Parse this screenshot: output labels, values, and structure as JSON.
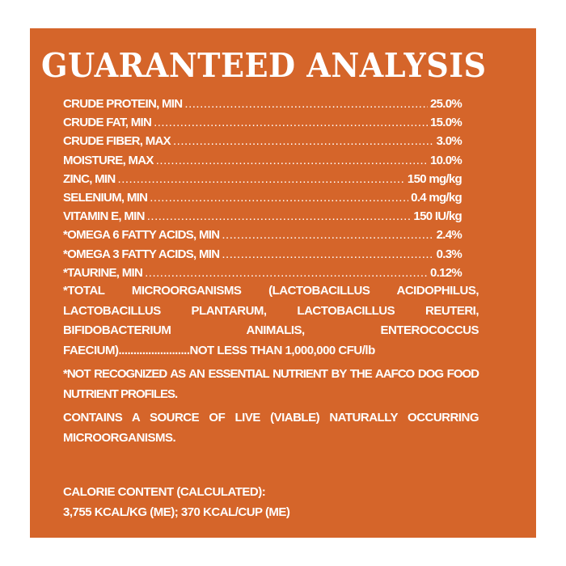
{
  "title": "GUARANTEED ANALYSIS",
  "rows": [
    {
      "label": "CRUDE PROTEIN, MIN",
      "value": "25.0%"
    },
    {
      "label": "CRUDE FAT, MIN",
      "value": "15.0%"
    },
    {
      "label": "CRUDE FIBER, MAX",
      "value": "3.0%"
    },
    {
      "label": "MOISTURE, MAX",
      "value": "10.0%"
    },
    {
      "label": "ZINC, MIN",
      "value": "150 mg/kg"
    },
    {
      "label": "SELENIUM, MIN",
      "value": "0.4 mg/kg"
    },
    {
      "label": "VITAMIN E, MIN",
      "value": "150 IU/kg"
    },
    {
      "label": "*OMEGA 6 FATTY ACIDS, MIN",
      "value": "2.4%"
    },
    {
      "label": "*OMEGA 3 FATTY ACIDS, MIN",
      "value": "0.3%"
    },
    {
      "label": "*TAURINE, MIN",
      "value": "0.12%"
    }
  ],
  "microorganisms": {
    "text": "*TOTAL MICROORGANISMS (LACTOBACILLUS ACIDOPHILUS, LACTOBACILLUS PLANTARUM, LACTOBACILLUS REUTERI, BIFIDOBACTERIUM ANIMALIS, ENTEROCOCCUS",
    "last_line": "FAECIUM)........................NOT LESS THAN 1,000,000 CFU/lb"
  },
  "footnote": "*NOT RECOGNIZED AS AN ESSENTIAL NUTRIENT BY THE AAFCO DOG FOOD NUTRIENT PROFILES.",
  "live_source": "CONTAINS A SOURCE OF LIVE (VIABLE) NATURALLY OCCURRING MICROORGANISMS.",
  "calorie": {
    "label": "CALORIE CONTENT (CALCULATED):",
    "value": "3,755 KCAL/KG (ME); 370 KCAL/CUP (ME)"
  },
  "colors": {
    "panel": "#d5652a",
    "text": "#ffffff"
  }
}
